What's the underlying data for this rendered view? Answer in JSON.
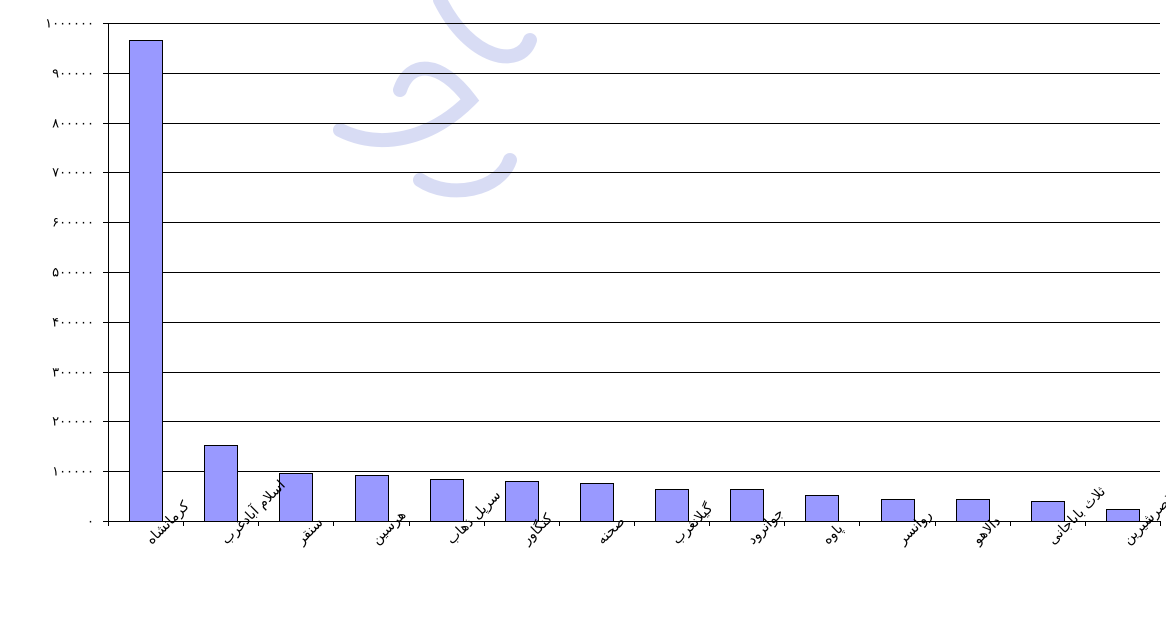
{
  "chart_data": {
    "type": "bar",
    "categories": [
      "کرمانشاه",
      "اسلام آبادغرب",
      "سنقر",
      "هرسین",
      "سرپل ذهاب",
      "کنگاور",
      "صحنه",
      "گیلانغرب",
      "جوانرود",
      "پاوه",
      "روانسر",
      "دالاهو",
      "ثلاث باباجانی",
      "قصرشیرین"
    ],
    "values": [
      966000,
      152000,
      96000,
      92000,
      84000,
      80000,
      76000,
      64000,
      64000,
      52000,
      44000,
      44000,
      40000,
      24000
    ],
    "ylim": [
      0,
      1000000
    ],
    "yticks": [
      0,
      100000,
      200000,
      300000,
      400000,
      500000,
      600000,
      700000,
      800000,
      900000,
      1000000
    ],
    "ytick_labels": [
      "۰",
      "۱۰۰۰۰۰",
      "۲۰۰۰۰۰",
      "۳۰۰۰۰۰",
      "۴۰۰۰۰۰",
      "۵۰۰۰۰۰",
      "۶۰۰۰۰۰",
      "۷۰۰۰۰۰",
      "۸۰۰۰۰۰",
      "۹۰۰۰۰۰",
      "۱۰۰۰۰۰۰"
    ],
    "grid": true,
    "bar_color": "#9999ff",
    "title": "",
    "xlabel": "",
    "ylabel": ""
  }
}
